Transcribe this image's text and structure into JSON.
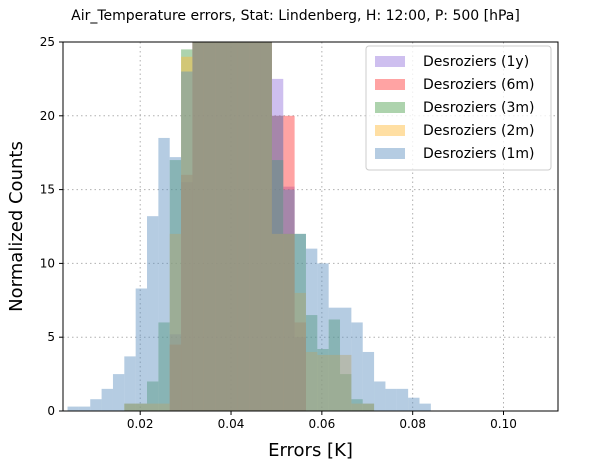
{
  "chart_data": {
    "type": "bar",
    "title": "Air_Temperature errors, Stat: Lindenberg, H: 12:00, P: 500 [hPa]",
    "xlabel": "Errors [K]",
    "ylabel": "Normalized Counts",
    "xlim": [
      0.003,
      0.112
    ],
    "ylim": [
      0,
      25
    ],
    "xticks": [
      0.02,
      0.04,
      0.06,
      0.08,
      0.1
    ],
    "xtick_labels": [
      "0.02",
      "0.04",
      "0.06",
      "0.08",
      "0.10"
    ],
    "yticks": [
      0,
      5,
      10,
      15,
      20,
      25
    ],
    "ytick_labels": [
      "0",
      "5",
      "10",
      "15",
      "20",
      "25"
    ],
    "grid": true,
    "legend_position": "top-right",
    "series": [
      {
        "name": "Desroziers (1y)",
        "color": "#9370db",
        "bins": [
          {
            "x0": 0.0265,
            "x1": 0.029,
            "y": 5.2
          },
          {
            "x0": 0.029,
            "x1": 0.0315,
            "y": 15.5
          },
          {
            "x0": 0.0315,
            "x1": 0.034,
            "y": 25
          },
          {
            "x0": 0.034,
            "x1": 0.0365,
            "y": 25
          },
          {
            "x0": 0.0365,
            "x1": 0.039,
            "y": 25
          },
          {
            "x0": 0.039,
            "x1": 0.0415,
            "y": 25
          },
          {
            "x0": 0.0415,
            "x1": 0.044,
            "y": 25
          },
          {
            "x0": 0.044,
            "x1": 0.0465,
            "y": 25
          },
          {
            "x0": 0.0465,
            "x1": 0.049,
            "y": 25
          },
          {
            "x0": 0.049,
            "x1": 0.0515,
            "y": 22.5
          },
          {
            "x0": 0.0515,
            "x1": 0.054,
            "y": 15.2
          },
          {
            "x0": 0.054,
            "x1": 0.0565,
            "y": 5.0
          }
        ]
      },
      {
        "name": "Desroziers (6m)",
        "color": "#ff3333",
        "bins": [
          {
            "x0": 0.0265,
            "x1": 0.029,
            "y": 4.5
          },
          {
            "x0": 0.029,
            "x1": 0.0315,
            "y": 16
          },
          {
            "x0": 0.0315,
            "x1": 0.034,
            "y": 25
          },
          {
            "x0": 0.034,
            "x1": 0.0365,
            "y": 25
          },
          {
            "x0": 0.0365,
            "x1": 0.039,
            "y": 25
          },
          {
            "x0": 0.039,
            "x1": 0.0415,
            "y": 25
          },
          {
            "x0": 0.0415,
            "x1": 0.044,
            "y": 25
          },
          {
            "x0": 0.044,
            "x1": 0.0465,
            "y": 25
          },
          {
            "x0": 0.0465,
            "x1": 0.049,
            "y": 25
          },
          {
            "x0": 0.049,
            "x1": 0.0515,
            "y": 20
          },
          {
            "x0": 0.0515,
            "x1": 0.054,
            "y": 20
          },
          {
            "x0": 0.054,
            "x1": 0.0565,
            "y": 6.0
          }
        ]
      },
      {
        "name": "Desroziers (3m)",
        "color": "#4a9e4a",
        "bins": [
          {
            "x0": 0.0165,
            "x1": 0.019,
            "y": 0.5
          },
          {
            "x0": 0.019,
            "x1": 0.0215,
            "y": 0.5
          },
          {
            "x0": 0.0215,
            "x1": 0.024,
            "y": 2.0
          },
          {
            "x0": 0.024,
            "x1": 0.0265,
            "y": 6.0
          },
          {
            "x0": 0.0265,
            "x1": 0.029,
            "y": 17.0
          },
          {
            "x0": 0.029,
            "x1": 0.0315,
            "y": 24.5
          },
          {
            "x0": 0.0315,
            "x1": 0.034,
            "y": 25
          },
          {
            "x0": 0.034,
            "x1": 0.0365,
            "y": 25
          },
          {
            "x0": 0.0365,
            "x1": 0.039,
            "y": 25
          },
          {
            "x0": 0.039,
            "x1": 0.0415,
            "y": 25
          },
          {
            "x0": 0.0415,
            "x1": 0.044,
            "y": 25
          },
          {
            "x0": 0.044,
            "x1": 0.0465,
            "y": 25
          },
          {
            "x0": 0.0465,
            "x1": 0.049,
            "y": 25
          },
          {
            "x0": 0.049,
            "x1": 0.0515,
            "y": 17.0
          },
          {
            "x0": 0.0515,
            "x1": 0.054,
            "y": 12.0
          },
          {
            "x0": 0.054,
            "x1": 0.0565,
            "y": 12.0
          },
          {
            "x0": 0.0565,
            "x1": 0.059,
            "y": 6.5
          },
          {
            "x0": 0.059,
            "x1": 0.0615,
            "y": 4.2
          },
          {
            "x0": 0.0615,
            "x1": 0.064,
            "y": 6.2
          },
          {
            "x0": 0.064,
            "x1": 0.0665,
            "y": 2.5
          },
          {
            "x0": 0.0665,
            "x1": 0.069,
            "y": 0.8
          },
          {
            "x0": 0.069,
            "x1": 0.0715,
            "y": 0.5
          }
        ]
      },
      {
        "name": "Desroziers (2m)",
        "color": "#ffb833",
        "bins": [
          {
            "x0": 0.0165,
            "x1": 0.019,
            "y": 0.5
          },
          {
            "x0": 0.019,
            "x1": 0.0215,
            "y": 0.5
          },
          {
            "x0": 0.0215,
            "x1": 0.024,
            "y": 0.5
          },
          {
            "x0": 0.024,
            "x1": 0.0265,
            "y": 0.5
          },
          {
            "x0": 0.0265,
            "x1": 0.029,
            "y": 12.0
          },
          {
            "x0": 0.029,
            "x1": 0.0315,
            "y": 24.0
          },
          {
            "x0": 0.0315,
            "x1": 0.034,
            "y": 25
          },
          {
            "x0": 0.034,
            "x1": 0.0365,
            "y": 25
          },
          {
            "x0": 0.0365,
            "x1": 0.039,
            "y": 25
          },
          {
            "x0": 0.039,
            "x1": 0.0415,
            "y": 25
          },
          {
            "x0": 0.0415,
            "x1": 0.044,
            "y": 25
          },
          {
            "x0": 0.044,
            "x1": 0.0465,
            "y": 25
          },
          {
            "x0": 0.0465,
            "x1": 0.049,
            "y": 25
          },
          {
            "x0": 0.049,
            "x1": 0.0515,
            "y": 12.0
          },
          {
            "x0": 0.0515,
            "x1": 0.054,
            "y": 12.0
          },
          {
            "x0": 0.054,
            "x1": 0.0565,
            "y": 8.0
          },
          {
            "x0": 0.0565,
            "x1": 0.059,
            "y": 4.0
          },
          {
            "x0": 0.059,
            "x1": 0.0615,
            "y": 3.8
          },
          {
            "x0": 0.0615,
            "x1": 0.064,
            "y": 3.8
          },
          {
            "x0": 0.064,
            "x1": 0.0665,
            "y": 3.8
          },
          {
            "x0": 0.0665,
            "x1": 0.069,
            "y": 0.5
          },
          {
            "x0": 0.069,
            "x1": 0.0715,
            "y": 0.5
          }
        ]
      },
      {
        "name": "Desroziers (1m)",
        "color": "#5a8fbf",
        "bins": [
          {
            "x0": 0.004,
            "x1": 0.0065,
            "y": 0.3
          },
          {
            "x0": 0.0065,
            "x1": 0.009,
            "y": 0.3
          },
          {
            "x0": 0.009,
            "x1": 0.0115,
            "y": 0.8
          },
          {
            "x0": 0.0115,
            "x1": 0.014,
            "y": 1.5
          },
          {
            "x0": 0.014,
            "x1": 0.0165,
            "y": 2.5
          },
          {
            "x0": 0.0165,
            "x1": 0.019,
            "y": 3.7
          },
          {
            "x0": 0.019,
            "x1": 0.0215,
            "y": 8.3
          },
          {
            "x0": 0.0215,
            "x1": 0.024,
            "y": 13.2
          },
          {
            "x0": 0.024,
            "x1": 0.0265,
            "y": 18.5
          },
          {
            "x0": 0.0265,
            "x1": 0.029,
            "y": 17.2
          },
          {
            "x0": 0.029,
            "x1": 0.0315,
            "y": 23.0
          },
          {
            "x0": 0.0315,
            "x1": 0.034,
            "y": 25
          },
          {
            "x0": 0.034,
            "x1": 0.0365,
            "y": 25
          },
          {
            "x0": 0.0365,
            "x1": 0.039,
            "y": 25
          },
          {
            "x0": 0.039,
            "x1": 0.0415,
            "y": 25
          },
          {
            "x0": 0.0415,
            "x1": 0.044,
            "y": 25
          },
          {
            "x0": 0.044,
            "x1": 0.0465,
            "y": 25
          },
          {
            "x0": 0.0465,
            "x1": 0.049,
            "y": 25
          },
          {
            "x0": 0.049,
            "x1": 0.0515,
            "y": 20.0
          },
          {
            "x0": 0.0515,
            "x1": 0.054,
            "y": 15.0
          },
          {
            "x0": 0.054,
            "x1": 0.0565,
            "y": 12.0
          },
          {
            "x0": 0.0565,
            "x1": 0.059,
            "y": 11.0
          },
          {
            "x0": 0.059,
            "x1": 0.0615,
            "y": 10.0
          },
          {
            "x0": 0.0615,
            "x1": 0.064,
            "y": 7.0
          },
          {
            "x0": 0.064,
            "x1": 0.0665,
            "y": 7.0
          },
          {
            "x0": 0.0665,
            "x1": 0.069,
            "y": 6.0
          },
          {
            "x0": 0.069,
            "x1": 0.0715,
            "y": 4.0
          },
          {
            "x0": 0.0715,
            "x1": 0.074,
            "y": 2.0
          },
          {
            "x0": 0.074,
            "x1": 0.0765,
            "y": 1.5
          },
          {
            "x0": 0.0765,
            "x1": 0.079,
            "y": 1.5
          },
          {
            "x0": 0.079,
            "x1": 0.0815,
            "y": 0.9
          },
          {
            "x0": 0.0815,
            "x1": 0.084,
            "y": 0.5
          }
        ]
      }
    ]
  }
}
